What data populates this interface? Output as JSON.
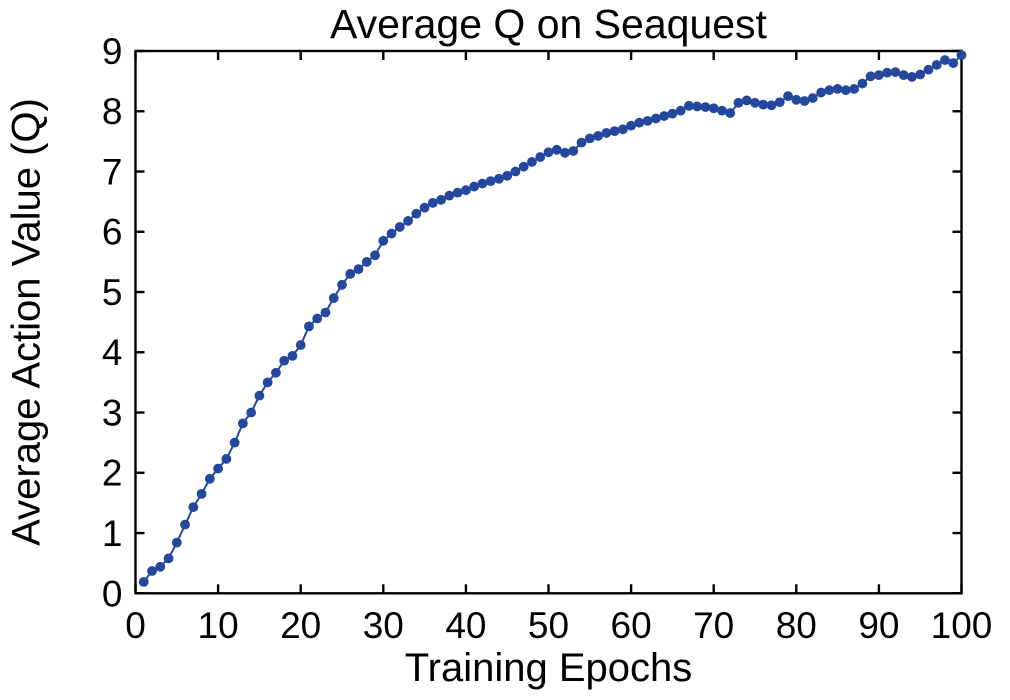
{
  "figure": {
    "title": "Average Q on Seaquest",
    "xlabel": "Training Epochs",
    "ylabel": "Average Action Value (Q)"
  },
  "colors": {
    "series": "#24489E",
    "axis": "#000000",
    "background": "#ffffff"
  },
  "chart_data": {
    "type": "line",
    "title": "Average Q on Seaquest",
    "xlabel": "Training Epochs",
    "ylabel": "Average Action Value (Q)",
    "xlim": [
      0,
      100
    ],
    "ylim": [
      0,
      9
    ],
    "x_ticks": [
      0,
      10,
      20,
      30,
      40,
      50,
      60,
      70,
      80,
      90,
      100
    ],
    "y_ticks": [
      0,
      1,
      2,
      3,
      4,
      5,
      6,
      7,
      8,
      9
    ],
    "grid": false,
    "legend_position": "none",
    "marker": "circle",
    "line_color": "#24489E",
    "marker_color": "#24489E",
    "x": [
      1,
      2,
      3,
      4,
      5,
      6,
      7,
      8,
      9,
      10,
      11,
      12,
      13,
      14,
      15,
      16,
      17,
      18,
      19,
      20,
      21,
      22,
      23,
      24,
      25,
      26,
      27,
      28,
      29,
      30,
      31,
      32,
      33,
      34,
      35,
      36,
      37,
      38,
      39,
      40,
      41,
      42,
      43,
      44,
      45,
      46,
      47,
      48,
      49,
      50,
      51,
      52,
      53,
      54,
      55,
      56,
      57,
      58,
      59,
      60,
      61,
      62,
      63,
      64,
      65,
      66,
      67,
      68,
      69,
      70,
      71,
      72,
      73,
      74,
      75,
      76,
      77,
      78,
      79,
      80,
      81,
      82,
      83,
      84,
      85,
      86,
      87,
      88,
      89,
      90,
      91,
      92,
      93,
      94,
      95,
      96,
      97,
      98,
      99,
      100
    ],
    "series": [
      {
        "name": "Average action value (Q) per training epoch",
        "values": [
          0.19,
          0.37,
          0.44,
          0.58,
          0.84,
          1.14,
          1.43,
          1.65,
          1.9,
          2.07,
          2.23,
          2.5,
          2.82,
          3.0,
          3.28,
          3.5,
          3.66,
          3.86,
          3.94,
          4.12,
          4.43,
          4.56,
          4.66,
          4.9,
          5.12,
          5.3,
          5.38,
          5.5,
          5.61,
          5.85,
          5.97,
          6.08,
          6.18,
          6.3,
          6.4,
          6.48,
          6.53,
          6.6,
          6.65,
          6.69,
          6.75,
          6.8,
          6.84,
          6.88,
          6.93,
          7.0,
          7.08,
          7.16,
          7.24,
          7.32,
          7.36,
          7.31,
          7.34,
          7.48,
          7.55,
          7.59,
          7.64,
          7.67,
          7.7,
          7.76,
          7.81,
          7.84,
          7.88,
          7.92,
          7.96,
          8.01,
          8.09,
          8.08,
          8.07,
          8.05,
          8.01,
          7.97,
          8.14,
          8.18,
          8.14,
          8.11,
          8.1,
          8.15,
          8.25,
          8.19,
          8.17,
          8.22,
          8.31,
          8.35,
          8.37,
          8.35,
          8.37,
          8.46,
          8.58,
          8.6,
          8.64,
          8.65,
          8.6,
          8.57,
          8.61,
          8.69,
          8.77,
          8.85,
          8.8,
          8.93
        ]
      }
    ]
  }
}
